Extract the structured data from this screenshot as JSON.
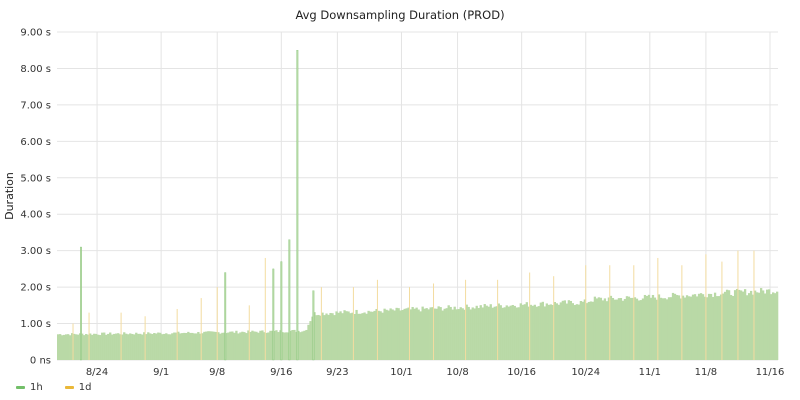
{
  "chart_data": {
    "type": "bar",
    "title": "Avg Downsampling Duration (PROD)",
    "ylabel": "Duration",
    "xlabel": "",
    "y_unit_note": "seconds",
    "ylim": [
      0,
      9
    ],
    "y_ticks": [
      {
        "value": 0,
        "label": "0 ns"
      },
      {
        "value": 1,
        "label": "1.00 s"
      },
      {
        "value": 2,
        "label": "2.00 s"
      },
      {
        "value": 3,
        "label": "3.00 s"
      },
      {
        "value": 4,
        "label": "4.00 s"
      },
      {
        "value": 5,
        "label": "5.00 s"
      },
      {
        "value": 6,
        "label": "6.00 s"
      },
      {
        "value": 7,
        "label": "7.00 s"
      },
      {
        "value": 8,
        "label": "8.00 s"
      },
      {
        "value": 9,
        "label": "9.00 s"
      }
    ],
    "xlim": [
      "2023-08-19",
      "2023-11-17"
    ],
    "x_ticks": [
      {
        "date": "2023-08-24",
        "label": "8/24"
      },
      {
        "date": "2023-09-01",
        "label": "9/1"
      },
      {
        "date": "2023-09-08",
        "label": "9/8"
      },
      {
        "date": "2023-09-16",
        "label": "9/16"
      },
      {
        "date": "2023-09-23",
        "label": "9/23"
      },
      {
        "date": "2023-10-01",
        "label": "10/1"
      },
      {
        "date": "2023-10-08",
        "label": "10/8"
      },
      {
        "date": "2023-10-16",
        "label": "10/16"
      },
      {
        "date": "2023-10-24",
        "label": "10/24"
      },
      {
        "date": "2023-11-01",
        "label": "11/1"
      },
      {
        "date": "2023-11-08",
        "label": "11/8"
      },
      {
        "date": "2023-11-16",
        "label": "11/16"
      }
    ],
    "grid": true,
    "legend_position": "bottom-left",
    "series": [
      {
        "name": "1h",
        "color": "#73bf69",
        "fill": "#b9d9a6",
        "approx_level": [
          {
            "date": "2023-08-19",
            "value": 0.72
          },
          {
            "date": "2023-09-01",
            "value": 0.75
          },
          {
            "date": "2023-09-10",
            "value": 0.78
          },
          {
            "date": "2023-09-19",
            "value": 0.82
          },
          {
            "date": "2023-09-20",
            "value": 1.3
          },
          {
            "date": "2023-10-01",
            "value": 1.4
          },
          {
            "date": "2023-10-16",
            "value": 1.55
          },
          {
            "date": "2023-10-24",
            "value": 1.62
          },
          {
            "date": "2023-10-25",
            "value": 1.7
          },
          {
            "date": "2023-11-01",
            "value": 1.75
          },
          {
            "date": "2023-11-08",
            "value": 1.85
          },
          {
            "date": "2023-11-17",
            "value": 1.95
          }
        ],
        "spikes": [
          {
            "date": "2023-08-22",
            "value": 3.1
          },
          {
            "date": "2023-09-09",
            "value": 2.4
          },
          {
            "date": "2023-09-15",
            "value": 2.5
          },
          {
            "date": "2023-09-16",
            "value": 2.7
          },
          {
            "date": "2023-09-17",
            "value": 3.3
          },
          {
            "date": "2023-09-18",
            "value": 8.5
          },
          {
            "date": "2023-09-20",
            "value": 1.9
          }
        ]
      },
      {
        "name": "1d",
        "color": "#eab839",
        "fill": "#f3dca0",
        "spikes": [
          {
            "date": "2023-08-21",
            "value": 1.0
          },
          {
            "date": "2023-08-23",
            "value": 1.3
          },
          {
            "date": "2023-08-27",
            "value": 1.3
          },
          {
            "date": "2023-08-30",
            "value": 1.2
          },
          {
            "date": "2023-09-03",
            "value": 1.4
          },
          {
            "date": "2023-09-06",
            "value": 1.7
          },
          {
            "date": "2023-09-08",
            "value": 2.0
          },
          {
            "date": "2023-09-12",
            "value": 1.5
          },
          {
            "date": "2023-09-14",
            "value": 2.8
          },
          {
            "date": "2023-09-21",
            "value": 2.0
          },
          {
            "date": "2023-09-25",
            "value": 2.0
          },
          {
            "date": "2023-09-28",
            "value": 2.2
          },
          {
            "date": "2023-10-02",
            "value": 2.0
          },
          {
            "date": "2023-10-05",
            "value": 2.1
          },
          {
            "date": "2023-10-09",
            "value": 2.2
          },
          {
            "date": "2023-10-13",
            "value": 2.2
          },
          {
            "date": "2023-10-17",
            "value": 2.4
          },
          {
            "date": "2023-10-20",
            "value": 2.3
          },
          {
            "date": "2023-10-24",
            "value": 2.6
          },
          {
            "date": "2023-10-27",
            "value": 2.6
          },
          {
            "date": "2023-10-30",
            "value": 2.6
          },
          {
            "date": "2023-11-02",
            "value": 2.8
          },
          {
            "date": "2023-11-05",
            "value": 2.6
          },
          {
            "date": "2023-11-08",
            "value": 2.9
          },
          {
            "date": "2023-11-10",
            "value": 2.7
          },
          {
            "date": "2023-11-12",
            "value": 3.0
          },
          {
            "date": "2023-11-14",
            "value": 3.0
          }
        ]
      }
    ]
  }
}
